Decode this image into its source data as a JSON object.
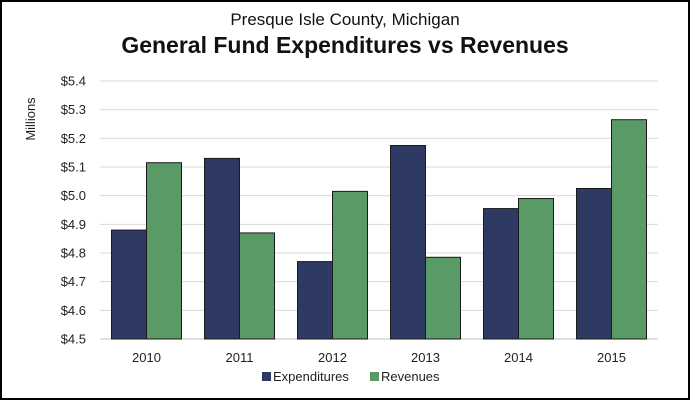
{
  "chart_data": {
    "type": "bar",
    "subtitle": "Presque Isle County, Michigan",
    "title": "General Fund Expenditures vs Revenues",
    "ylabel": "Millions",
    "xlabel": "",
    "categories": [
      "2010",
      "2011",
      "2012",
      "2013",
      "2014",
      "2015"
    ],
    "series": [
      {
        "name": "Expenditures",
        "color": "#2e3a63",
        "values": [
          4.88,
          5.13,
          4.77,
          5.175,
          4.955,
          5.025
        ]
      },
      {
        "name": "Revenues",
        "color": "#5a9a66",
        "values": [
          5.115,
          4.87,
          5.015,
          4.785,
          4.99,
          5.265
        ]
      }
    ],
    "ylim": [
      4.5,
      5.4
    ],
    "yticks": [
      4.5,
      4.6,
      4.7,
      4.8,
      4.9,
      5.0,
      5.1,
      5.2,
      5.3,
      5.4
    ],
    "ytick_labels": [
      "$4.5",
      "$4.6",
      "$4.7",
      "$4.8",
      "$4.9",
      "$5.0",
      "$5.1",
      "$5.2",
      "$5.3",
      "$5.4"
    ],
    "grid": true,
    "legend_position": "bottom"
  }
}
